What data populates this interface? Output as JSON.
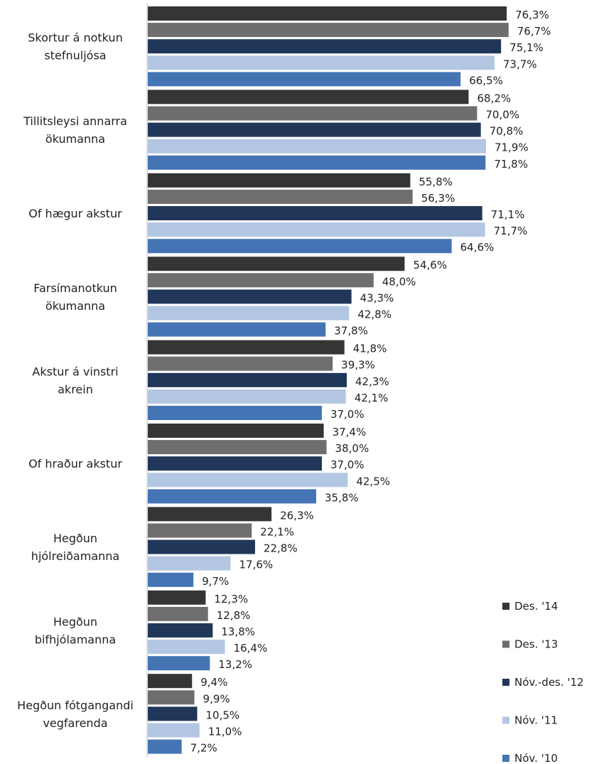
{
  "chart_data": {
    "type": "bar",
    "orientation": "horizontal",
    "title": "",
    "xlabel": "",
    "ylabel": "",
    "xlim": [
      0,
      100
    ],
    "grid": false,
    "legend_position": "right",
    "categories": [
      [
        "Skortur á notkun",
        "stefnuljósa"
      ],
      [
        "Tillitsleysi annarra",
        "ökumanna"
      ],
      [
        "Of hægur akstur"
      ],
      [
        "Farsímanotkun",
        "ökumanna"
      ],
      [
        "Akstur á vinstri",
        "akrein"
      ],
      [
        "Of hraður akstur"
      ],
      [
        "Hegðun",
        "hjólreiðamanna"
      ],
      [
        "Hegðun",
        "bifhjólamanna"
      ],
      [
        "Hegðun fótgangandi",
        "vegfarenda"
      ]
    ],
    "series": [
      {
        "name": "Des. '14",
        "color": "#353535",
        "values": [
          76.3,
          68.2,
          55.8,
          54.6,
          41.8,
          37.4,
          26.3,
          12.3,
          9.4
        ],
        "labels": [
          "76,3%",
          "68,2%",
          "55,8%",
          "54,6%",
          "41,8%",
          "37,4%",
          "26,3%",
          "12,3%",
          "9,4%"
        ]
      },
      {
        "name": "Des. '13",
        "color": "#6e6e6e",
        "values": [
          76.7,
          70.0,
          56.3,
          48.0,
          39.3,
          38.0,
          22.1,
          12.8,
          9.9
        ],
        "labels": [
          "76,7%",
          "70,0%",
          "56,3%",
          "48,0%",
          "39,3%",
          "38,0%",
          "22,1%",
          "12,8%",
          "9,9%"
        ]
      },
      {
        "name": "Nóv.-des. '12",
        "color": "#213759",
        "values": [
          75.1,
          70.8,
          71.1,
          43.3,
          42.3,
          37.0,
          22.8,
          13.8,
          10.5
        ],
        "labels": [
          "75,1%",
          "70,8%",
          "71,1%",
          "43,3%",
          "42,3%",
          "37,0%",
          "22,8%",
          "13,8%",
          "10,5%"
        ]
      },
      {
        "name": "Nóv. '11",
        "color": "#b3c7e3",
        "values": [
          73.7,
          71.9,
          71.7,
          42.8,
          42.1,
          42.5,
          17.6,
          16.4,
          11.0
        ],
        "labels": [
          "73,7%",
          "71,9%",
          "71,7%",
          "42,8%",
          "42,1%",
          "42,5%",
          "17,6%",
          "16,4%",
          "11,0%"
        ]
      },
      {
        "name": "Nóv. '10",
        "color": "#4474b4",
        "values": [
          66.5,
          71.8,
          64.6,
          37.8,
          37.0,
          35.8,
          9.7,
          13.2,
          7.2
        ],
        "labels": [
          "66,5%",
          "71,8%",
          "64,6%",
          "37,8%",
          "37,0%",
          "35,8%",
          "9,7%",
          "13,2%",
          "7,2%"
        ]
      }
    ]
  }
}
